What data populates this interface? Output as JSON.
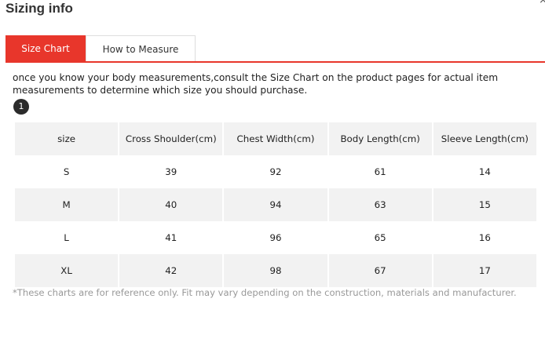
{
  "title": "Sizing info",
  "close_glyph": "×",
  "tabs": [
    {
      "label": "Size Chart",
      "active": true
    },
    {
      "label": "How to Measure",
      "active": false
    }
  ],
  "intro": "once you know your body measurements,consult the Size Chart on the product pages for actual item measurements to determine which size you should purchase.",
  "step_badge": "1",
  "table": {
    "headers": [
      "size",
      "Cross Shoulder(cm)",
      "Chest Width(cm)",
      "Body Length(cm)",
      "Sleeve Length(cm)"
    ],
    "rows": [
      [
        "S",
        "39",
        "92",
        "61",
        "14"
      ],
      [
        "M",
        "40",
        "94",
        "63",
        "15"
      ],
      [
        "L",
        "41",
        "96",
        "65",
        "16"
      ],
      [
        "XL",
        "42",
        "98",
        "67",
        "17"
      ]
    ]
  },
  "footnote": "*These charts are for reference only. Fit may vary depending on the construction, materials and manufacturer.",
  "colors": {
    "accent": "#e8362b",
    "row_shade": "#f2f2f2",
    "footnote": "#999999"
  },
  "icons": {
    "close": "close-icon",
    "step": "step-number-badge"
  }
}
